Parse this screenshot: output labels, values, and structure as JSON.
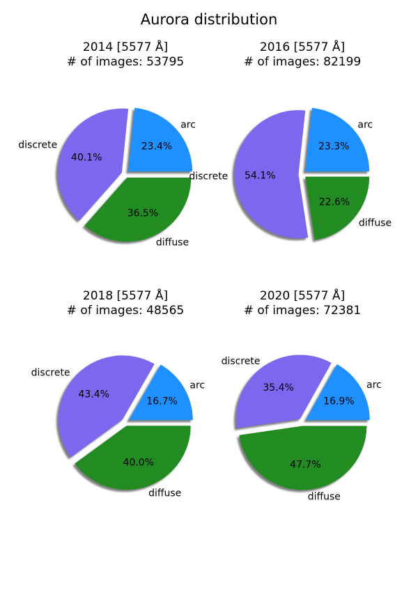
{
  "figure": {
    "title": "Aurora distribution"
  },
  "chart_data": [
    {
      "type": "pie",
      "title_line1": "2014 [5577 Å]",
      "title_line2": "# of images: 53795",
      "slices": [
        {
          "label": "arc",
          "value": 23.4,
          "pct_label": "23.4%",
          "color": "#1e90ff"
        },
        {
          "label": "discrete",
          "value": 40.1,
          "pct_label": "40.1%",
          "color": "#7b68ee"
        },
        {
          "label": "diffuse",
          "value": 36.5,
          "pct_label": "36.5%",
          "color": "#228b22"
        }
      ]
    },
    {
      "type": "pie",
      "title_line1": "2016 [5577 Å]",
      "title_line2": "# of images: 82199",
      "slices": [
        {
          "label": "arc",
          "value": 23.3,
          "pct_label": "23.3%",
          "color": "#1e90ff"
        },
        {
          "label": "discrete",
          "value": 54.1,
          "pct_label": "54.1%",
          "color": "#7b68ee"
        },
        {
          "label": "diffuse",
          "value": 22.6,
          "pct_label": "22.6%",
          "color": "#228b22"
        }
      ]
    },
    {
      "type": "pie",
      "title_line1": "2018 [5577 Å]",
      "title_line2": "# of images: 48565",
      "slices": [
        {
          "label": "arc",
          "value": 16.7,
          "pct_label": "16.7%",
          "color": "#1e90ff"
        },
        {
          "label": "discrete",
          "value": 43.4,
          "pct_label": "43.4%",
          "color": "#7b68ee"
        },
        {
          "label": "diffuse",
          "value": 40.0,
          "pct_label": "40.0%",
          "color": "#228b22"
        }
      ]
    },
    {
      "type": "pie",
      "title_line1": "2020 [5577 Å]",
      "title_line2": "# of images: 72381",
      "slices": [
        {
          "label": "arc",
          "value": 16.9,
          "pct_label": "16.9%",
          "color": "#1e90ff"
        },
        {
          "label": "discrete",
          "value": 35.4,
          "pct_label": "35.4%",
          "color": "#7b68ee"
        },
        {
          "label": "diffuse",
          "value": 47.7,
          "pct_label": "47.7%",
          "color": "#228b22"
        }
      ]
    }
  ]
}
